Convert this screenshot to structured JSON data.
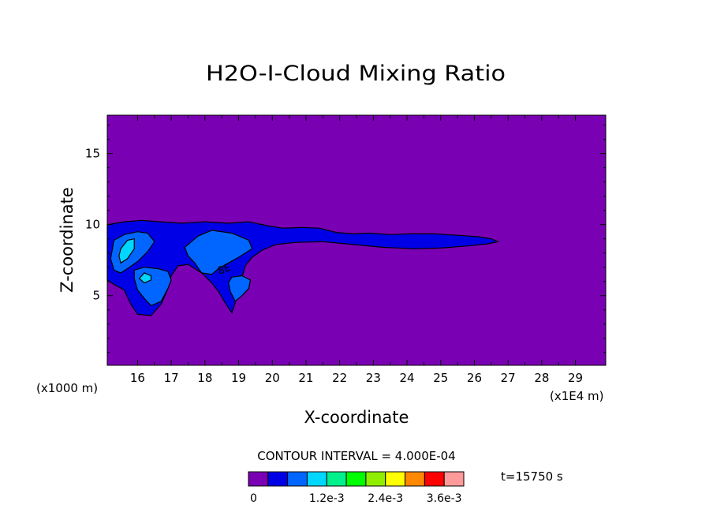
{
  "chart_data": {
    "type": "contour",
    "title": "H2O-I-Cloud Mixing Ratio",
    "xlabel": "X-coordinate",
    "ylabel": "Z-coordinate",
    "x_unit_label": "(x1E4 m)",
    "y_unit_label": "(x1000 m)",
    "xlim": [
      15.1,
      29.9
    ],
    "ylim": [
      0.1,
      17.7
    ],
    "x_ticks": [
      "16",
      "17",
      "18",
      "19",
      "20",
      "21",
      "22",
      "23",
      "24",
      "25",
      "26",
      "27",
      "28",
      "29"
    ],
    "y_ticks": [
      "5",
      "10",
      "15"
    ],
    "contour_interval_text": "CONTOUR INTERVAL = 4.000E-04",
    "time_text": "t=15750 s",
    "contour_label": "8E",
    "colorbar": {
      "colors": [
        "#7a00b4",
        "#0000e6",
        "#0066ff",
        "#00d7ff",
        "#00f08c",
        "#00ff00",
        "#90ee00",
        "#ffff00",
        "#ff8800",
        "#ff0000",
        "#ff9a9a"
      ],
      "labels": [
        "0",
        "1.2e-3",
        "2.4e-3",
        "3.6e-3"
      ]
    },
    "regions": [
      {
        "level": 1,
        "points": [
          [
            15.1,
            10.0
          ],
          [
            15.6,
            10.2
          ],
          [
            16.1,
            10.3
          ],
          [
            16.7,
            10.2
          ],
          [
            17.3,
            10.1
          ],
          [
            18.0,
            10.2
          ],
          [
            18.7,
            10.1
          ],
          [
            19.3,
            10.2
          ],
          [
            19.8,
            9.95
          ],
          [
            20.3,
            9.75
          ],
          [
            20.9,
            9.8
          ],
          [
            21.4,
            9.75
          ],
          [
            21.9,
            9.45
          ],
          [
            22.4,
            9.35
          ],
          [
            22.9,
            9.4
          ],
          [
            23.5,
            9.3
          ],
          [
            24.1,
            9.35
          ],
          [
            24.8,
            9.35
          ],
          [
            25.5,
            9.25
          ],
          [
            26.1,
            9.15
          ],
          [
            26.5,
            9.0
          ],
          [
            26.7,
            8.8
          ],
          [
            26.4,
            8.65
          ],
          [
            25.8,
            8.5
          ],
          [
            25.0,
            8.35
          ],
          [
            24.2,
            8.3
          ],
          [
            23.3,
            8.4
          ],
          [
            22.4,
            8.6
          ],
          [
            21.5,
            8.8
          ],
          [
            20.7,
            8.75
          ],
          [
            20.1,
            8.6
          ],
          [
            19.7,
            8.2
          ],
          [
            19.4,
            7.7
          ],
          [
            19.2,
            7.1
          ],
          [
            19.1,
            6.3
          ],
          [
            19.0,
            5.2
          ],
          [
            18.9,
            4.5
          ],
          [
            18.8,
            3.8
          ],
          [
            18.6,
            4.5
          ],
          [
            18.4,
            5.3
          ],
          [
            18.2,
            5.9
          ],
          [
            17.9,
            6.6
          ],
          [
            17.5,
            7.2
          ],
          [
            17.2,
            7.1
          ],
          [
            17.0,
            6.4
          ],
          [
            16.9,
            5.5
          ],
          [
            16.7,
            4.4
          ],
          [
            16.4,
            3.6
          ],
          [
            16.0,
            3.7
          ],
          [
            15.8,
            4.4
          ],
          [
            15.6,
            5.4
          ],
          [
            15.3,
            5.8
          ],
          [
            15.1,
            6.1
          ]
        ]
      },
      {
        "level": 2,
        "points": [
          [
            15.3,
            8.9
          ],
          [
            15.6,
            9.3
          ],
          [
            16.0,
            9.5
          ],
          [
            16.3,
            9.4
          ],
          [
            16.5,
            8.8
          ],
          [
            16.3,
            8.1
          ],
          [
            16.0,
            7.4
          ],
          [
            15.7,
            6.9
          ],
          [
            15.5,
            6.6
          ],
          [
            15.3,
            6.8
          ],
          [
            15.2,
            7.6
          ]
        ]
      },
      {
        "level": 2,
        "points": [
          [
            15.9,
            6.8
          ],
          [
            16.2,
            7.0
          ],
          [
            16.6,
            6.9
          ],
          [
            16.9,
            6.7
          ],
          [
            17.0,
            6.1
          ],
          [
            16.9,
            5.5
          ],
          [
            16.7,
            4.6
          ],
          [
            16.4,
            4.3
          ],
          [
            16.2,
            4.8
          ],
          [
            16.0,
            5.4
          ],
          [
            15.9,
            6.2
          ]
        ]
      },
      {
        "level": 2,
        "points": [
          [
            17.4,
            8.4
          ],
          [
            17.8,
            9.2
          ],
          [
            18.2,
            9.6
          ],
          [
            18.8,
            9.4
          ],
          [
            19.3,
            8.9
          ],
          [
            19.4,
            8.3
          ],
          [
            19.0,
            7.7
          ],
          [
            18.7,
            7.3
          ],
          [
            18.4,
            6.9
          ],
          [
            18.2,
            6.5
          ],
          [
            17.9,
            6.6
          ],
          [
            17.7,
            7.3
          ],
          [
            17.5,
            7.8
          ]
        ]
      },
      {
        "level": 2,
        "points": [
          [
            18.8,
            6.3
          ],
          [
            19.1,
            6.4
          ],
          [
            19.35,
            6.1
          ],
          [
            19.3,
            5.5
          ],
          [
            19.1,
            5.0
          ],
          [
            18.9,
            4.6
          ],
          [
            18.75,
            5.3
          ],
          [
            18.7,
            5.9
          ]
        ]
      },
      {
        "level": 3,
        "points": [
          [
            15.5,
            8.3
          ],
          [
            15.7,
            8.9
          ],
          [
            15.9,
            9.0
          ],
          [
            15.9,
            8.3
          ],
          [
            15.7,
            7.6
          ],
          [
            15.5,
            7.3
          ],
          [
            15.45,
            7.8
          ]
        ]
      },
      {
        "level": 3,
        "points": [
          [
            16.05,
            6.2
          ],
          [
            16.2,
            6.6
          ],
          [
            16.4,
            6.4
          ],
          [
            16.4,
            6.1
          ],
          [
            16.2,
            5.9
          ]
        ]
      }
    ]
  }
}
